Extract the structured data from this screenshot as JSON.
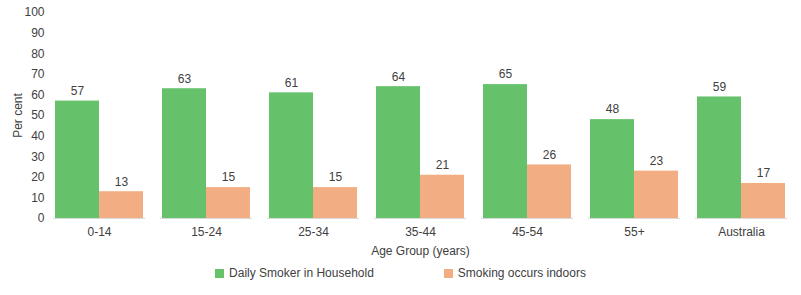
{
  "chart_data": {
    "type": "bar",
    "x_label": "Age Group (years)",
    "y_label": "Per cent",
    "categories": [
      "0-14",
      "15-24",
      "25-34",
      "35-44",
      "45-54",
      "55+",
      "Australia"
    ],
    "series": [
      {
        "name": "Daily Smoker in Household",
        "color": "#66c16b",
        "values": [
          57,
          63,
          61,
          64,
          65,
          48,
          59
        ]
      },
      {
        "name": "Smoking occurs indoors",
        "color": "#f2ae82",
        "values": [
          13,
          15,
          15,
          21,
          26,
          23,
          17
        ]
      }
    ],
    "ylim": [
      0,
      100
    ],
    "yticks": [
      0,
      10,
      20,
      30,
      40,
      50,
      60,
      70,
      80,
      90,
      100
    ],
    "grid": false,
    "data_labels": true,
    "legend": "bottom"
  }
}
